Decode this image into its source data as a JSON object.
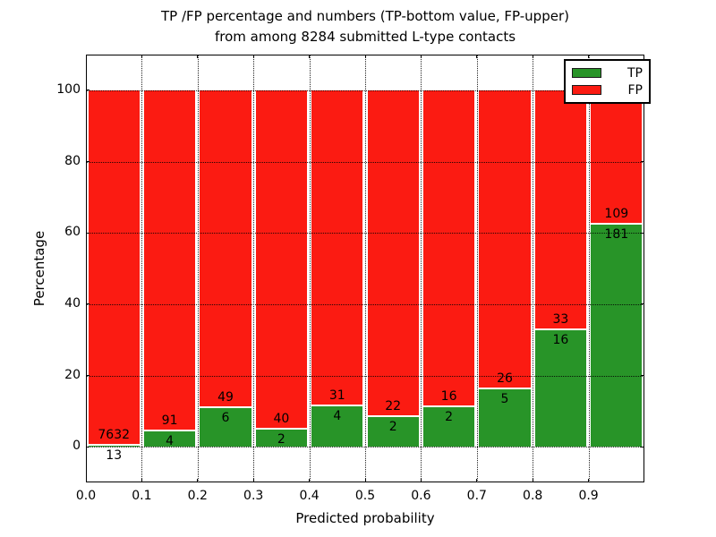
{
  "title": {
    "line1": "TP /FP percentage and numbers (TP-bottom value, FP-upper)",
    "line2": "from among 8284 submitted L-type contacts"
  },
  "axes": {
    "xlabel": "Predicted probability",
    "ylabel": "Percentage",
    "x_tick_labels": [
      "0.0",
      "0.1",
      "0.2",
      "0.3",
      "0.4",
      "0.5",
      "0.6",
      "0.7",
      "0.8",
      "0.9"
    ],
    "y_tick_labels": [
      "0",
      "20",
      "40",
      "60",
      "80",
      "100"
    ]
  },
  "legend": {
    "items": [
      {
        "label": "TP",
        "color": "#289428"
      },
      {
        "label": "FP",
        "color": "#fb1b12"
      }
    ]
  },
  "colors": {
    "tp": "#289428",
    "fp": "#fb1b12",
    "background": "#ffffff",
    "grid": "#000000",
    "bar_edge": "#ffffff"
  },
  "chart_data": {
    "type": "bar",
    "stacked": true,
    "normalized_to_percent": true,
    "title": "TP /FP percentage and numbers (TP-bottom value, FP-upper) from among 8284 submitted L-type contacts",
    "xlabel": "Predicted probability",
    "ylabel": "Percentage",
    "bin_starts": [
      0.0,
      0.1,
      0.2,
      0.3,
      0.4,
      0.5,
      0.6,
      0.7,
      0.8,
      0.9
    ],
    "bin_width": 0.1,
    "series": [
      {
        "name": "TP",
        "color": "#289428",
        "values": [
          13,
          4,
          6,
          2,
          4,
          2,
          2,
          5,
          16,
          181
        ]
      },
      {
        "name": "FP",
        "color": "#fb1b12",
        "values": [
          7632,
          91,
          49,
          40,
          31,
          22,
          16,
          26,
          33,
          109
        ]
      }
    ],
    "tp_percent_per_bin": [
      0.17,
      4.21,
      10.91,
      4.76,
      11.43,
      8.33,
      11.11,
      16.13,
      32.65,
      62.41
    ],
    "total_submitted": 8284,
    "xlim": [
      0.0,
      1.0
    ],
    "ylim": [
      -10,
      110
    ],
    "y_ticks": [
      0,
      20,
      40,
      60,
      80,
      100
    ],
    "x_ticks": [
      0.0,
      0.1,
      0.2,
      0.3,
      0.4,
      0.5,
      0.6,
      0.7,
      0.8,
      0.9
    ],
    "grid": "dotted",
    "legend_position": "upper right"
  }
}
